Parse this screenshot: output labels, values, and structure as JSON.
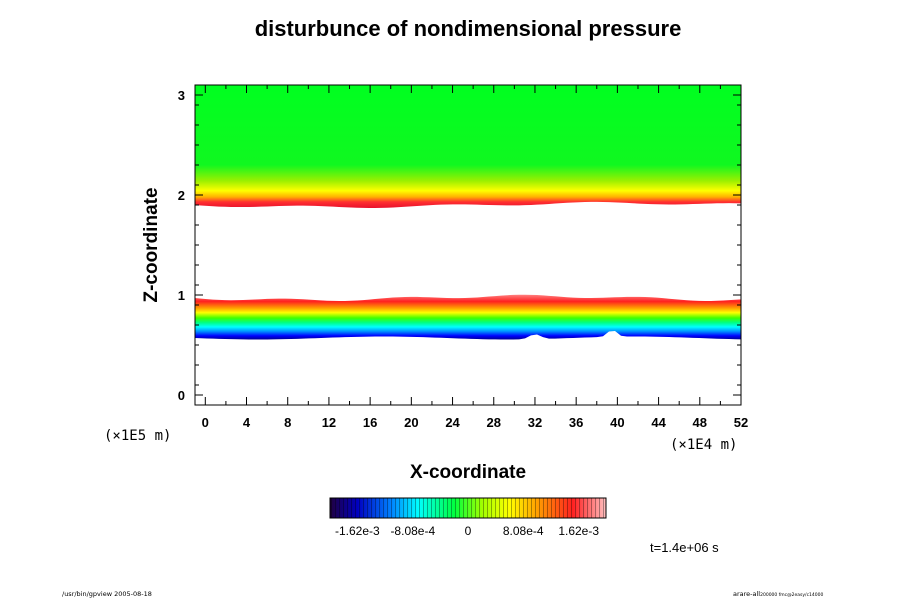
{
  "chart_data": {
    "type": "heatmap",
    "title": "disturbunce of nondimensional pressure",
    "xlabel": "X-coordinate",
    "ylabel": "Z-coordinate",
    "x_scale_label": "(×1E4 m)",
    "y_scale_label": "(×1E5 m)",
    "xlim": [
      -1,
      52
    ],
    "ylim": [
      -0.1,
      3.1
    ],
    "x_ticks": [
      0,
      4,
      8,
      12,
      16,
      20,
      24,
      28,
      32,
      36,
      40,
      44,
      48,
      52
    ],
    "y_ticks": [
      0,
      1,
      2,
      3
    ],
    "colorbar": {
      "min": -0.00202,
      "max": 0.00202,
      "tick_values": [
        -0.00162,
        -0.000808,
        0,
        0.000808,
        0.00162
      ],
      "tick_labels": [
        "-1.62e-3",
        "-8.08e-4",
        "0",
        "8.08e-4",
        "1.62e-3"
      ]
    },
    "bands": [
      {
        "description": "upper level",
        "z_from": 1.9,
        "z_to": 3.1,
        "value_from": 0.00181,
        "value_to": 0.0001
      },
      {
        "description": "lower level",
        "z_from": 0.57,
        "z_to": 0.97,
        "value_from": -0.0019,
        "value_to": 0.00175
      }
    ],
    "white_regions_note": "values outside colour range left blank"
  },
  "time_label": "t=1.4e+06 s",
  "footer_left": "/usr/bin/gpview 2005-08-18",
  "footer_right": "arare-all",
  "footer_right_small": "200000 fmc@2easy/c14000"
}
